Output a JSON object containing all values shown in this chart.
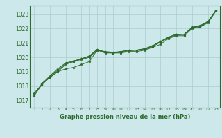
{
  "bg_color": "#cce8ea",
  "grid_color": "#aacccc",
  "line_color": "#2d6a2d",
  "marker_color": "#2d6a2d",
  "xlabel": "Graphe pression niveau de la mer (hPa)",
  "xlabel_color": "#2d6a2d",
  "ylabel_ticks": [
    1017,
    1018,
    1019,
    1020,
    1021,
    1022,
    1023
  ],
  "xlim": [
    -0.5,
    23.5
  ],
  "ylim": [
    1016.5,
    1023.6
  ],
  "xticks": [
    0,
    1,
    2,
    3,
    4,
    5,
    6,
    7,
    8,
    9,
    10,
    11,
    12,
    13,
    14,
    15,
    16,
    17,
    18,
    19,
    20,
    21,
    22,
    23
  ],
  "line1_x": [
    0,
    1,
    2,
    3,
    4,
    5,
    6,
    7,
    8,
    9,
    10,
    11,
    12,
    13,
    14,
    15,
    16,
    17,
    18,
    19,
    20,
    21,
    22,
    23
  ],
  "line1_y": [
    1017.3,
    1018.1,
    1018.6,
    1019.0,
    1019.2,
    1019.3,
    1019.5,
    1019.7,
    1020.5,
    1020.3,
    1020.3,
    1020.3,
    1020.4,
    1020.4,
    1020.5,
    1020.7,
    1020.9,
    1021.3,
    1021.5,
    1021.5,
    1022.0,
    1022.1,
    1022.4,
    1023.2
  ],
  "line2_x": [
    0,
    1,
    2,
    3,
    4,
    5,
    6,
    7,
    8,
    9,
    10,
    11,
    12,
    13,
    14,
    15,
    16,
    17,
    18,
    19,
    20,
    21,
    22,
    23
  ],
  "line2_y": [
    1017.5,
    1018.1,
    1018.65,
    1019.1,
    1019.55,
    1019.7,
    1019.9,
    1020.05,
    1020.55,
    1020.35,
    1020.3,
    1020.35,
    1020.45,
    1020.5,
    1020.55,
    1020.75,
    1021.05,
    1021.35,
    1021.55,
    1021.6,
    1022.05,
    1022.15,
    1022.45,
    1023.25
  ],
  "line3_x": [
    1,
    2,
    3,
    4,
    5,
    6,
    7,
    8,
    9,
    10,
    11,
    12,
    13,
    14,
    15,
    16,
    17,
    18,
    19,
    20,
    21,
    22,
    23
  ],
  "line3_y": [
    1018.2,
    1018.6,
    1019.0,
    1019.5,
    1019.7,
    1019.85,
    1020.0,
    1020.5,
    1020.4,
    1020.35,
    1020.4,
    1020.5,
    1020.5,
    1020.6,
    1020.8,
    1021.1,
    1021.4,
    1021.6,
    1021.6,
    1022.1,
    1022.2,
    1022.5,
    1023.25
  ],
  "line4_x": [
    0,
    1,
    2,
    3,
    4,
    5,
    6,
    7,
    8,
    9,
    10,
    11,
    12,
    13,
    14,
    15,
    16,
    17,
    18,
    19,
    20,
    21,
    22,
    23
  ],
  "line4_y": [
    1017.4,
    1018.15,
    1018.7,
    1019.2,
    1019.6,
    1019.75,
    1019.9,
    1020.1,
    1020.55,
    1020.35,
    1020.3,
    1020.4,
    1020.5,
    1020.5,
    1020.6,
    1020.8,
    1021.1,
    1021.4,
    1021.6,
    1021.6,
    1022.05,
    1022.2,
    1022.45,
    1023.25
  ]
}
